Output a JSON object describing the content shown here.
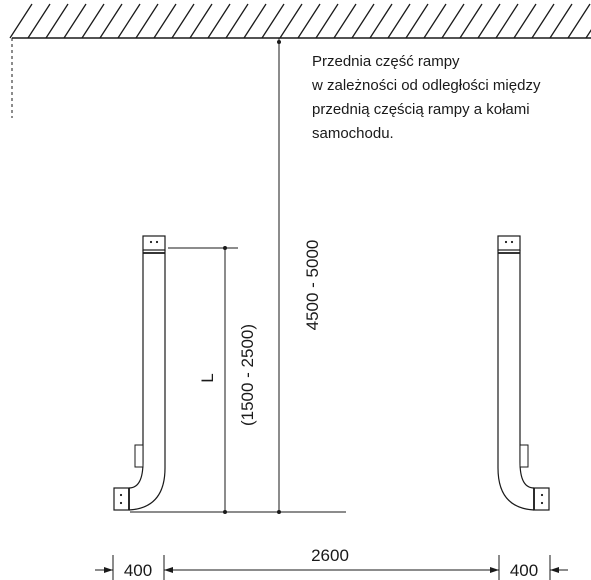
{
  "note": {
    "lines": [
      "Przednia część rampy",
      "w zależności od odległości między",
      "przednią częścią rampy a kołami",
      "samochodu."
    ]
  },
  "dimensions": {
    "wall_distance": "4500 - 5000",
    "length_symbol": "L",
    "length_range": "(1500 - 2500)",
    "track_width": "2600",
    "left_width": "400",
    "right_width": "400"
  },
  "colors": {
    "line": "#1a1a1a",
    "background": "#ffffff"
  }
}
